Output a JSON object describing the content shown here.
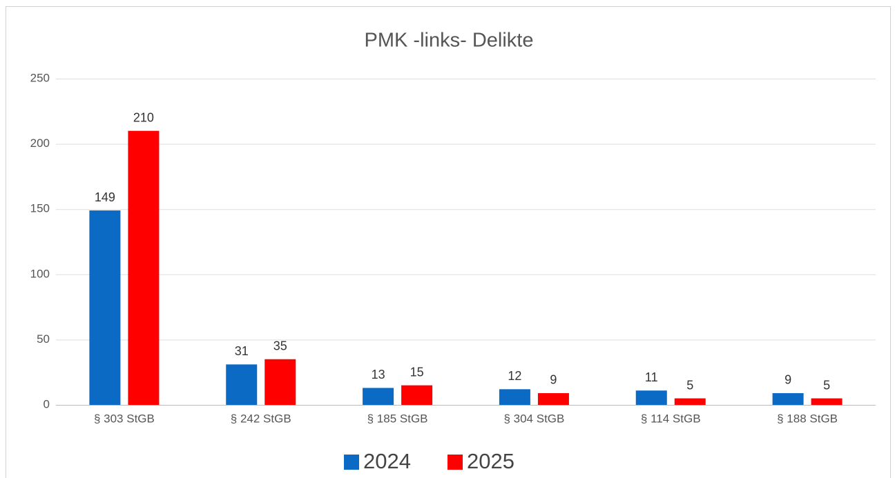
{
  "chart_data": {
    "type": "bar",
    "title": "PMK -links- Delikte",
    "categories": [
      "§ 303 StGB",
      "§ 242 StGB",
      "§ 185 StGB",
      "§ 304 StGB",
      "§ 114 StGB",
      "§ 188 StGB"
    ],
    "series": [
      {
        "name": "2024",
        "color": "#0a6ac4",
        "values": [
          149,
          31,
          13,
          12,
          11,
          9
        ]
      },
      {
        "name": "2025",
        "color": "#ff0000",
        "values": [
          210,
          35,
          15,
          9,
          5,
          5
        ]
      }
    ],
    "ylim": [
      0,
      250
    ],
    "yticks": [
      0,
      50,
      100,
      150,
      200,
      250
    ],
    "grid": true,
    "legend": "bottom"
  }
}
